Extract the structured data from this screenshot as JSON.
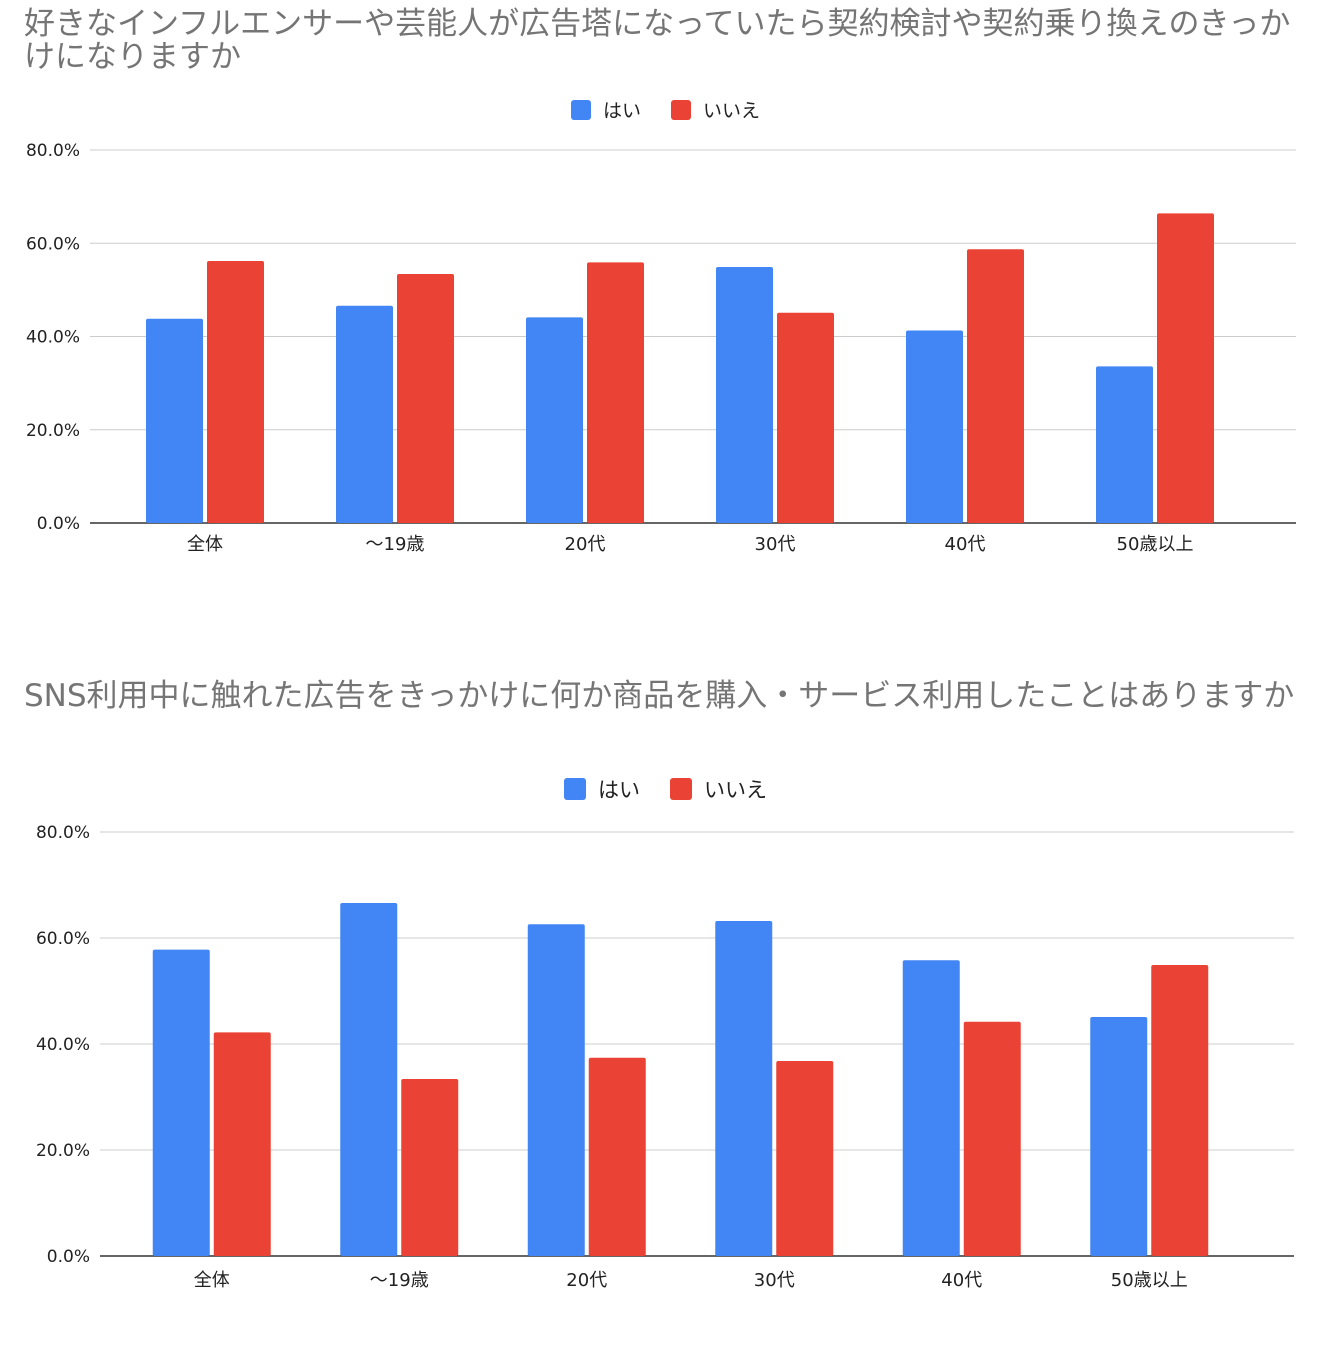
{
  "chart_data": [
    {
      "type": "bar",
      "title": "好きなインフルエンサーや芸能人が広告塔になっていたら契約検討や契約乗り換えのきっかけになりますか",
      "categories": [
        "全体",
        "〜19歳",
        "20代",
        "30代",
        "40代",
        "50歳以上"
      ],
      "series": [
        {
          "name": "はい",
          "color": "#4285f4",
          "values": [
            43.8,
            46.6,
            44.1,
            54.9,
            41.3,
            33.6
          ]
        },
        {
          "name": "いいえ",
          "color": "#ea4335",
          "values": [
            56.2,
            53.4,
            55.9,
            45.1,
            58.7,
            66.4
          ]
        }
      ],
      "yticks": [
        "0.0%",
        "20.0%",
        "40.0%",
        "60.0%",
        "80.0%"
      ],
      "ylim": [
        0,
        80
      ],
      "legend_position": "top-center",
      "grid": true
    },
    {
      "type": "bar",
      "title": "SNS利用中に触れた広告をきっかけに何か商品を購入・サービス利用したことはありますか",
      "categories": [
        "全体",
        "〜19歳",
        "20代",
        "30代",
        "40代",
        "50歳以上"
      ],
      "series": [
        {
          "name": "はい",
          "color": "#4285f4",
          "values": [
            57.8,
            66.6,
            62.6,
            63.2,
            55.8,
            45.1
          ]
        },
        {
          "name": "いいえ",
          "color": "#ea4335",
          "values": [
            42.2,
            33.4,
            37.4,
            36.8,
            44.2,
            54.9
          ]
        }
      ],
      "yticks": [
        "0.0%",
        "20.0%",
        "40.0%",
        "60.0%",
        "80.0%"
      ],
      "ylim": [
        0,
        80
      ],
      "legend_position": "top-center",
      "grid": true
    }
  ]
}
